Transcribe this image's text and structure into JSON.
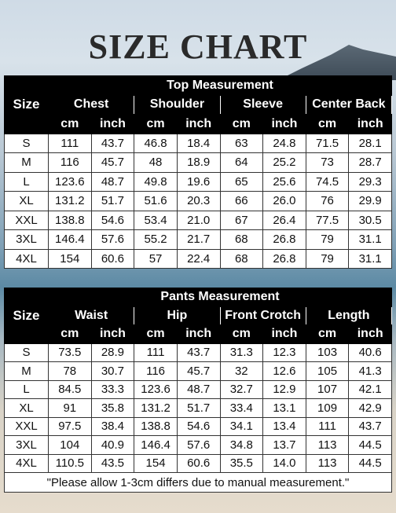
{
  "title": "SIZE CHART",
  "top": {
    "section_title": "Top Measurement",
    "size_label": "Size",
    "groups": [
      "Chest",
      "Shoulder",
      "Sleeve",
      "Center Back"
    ],
    "units": [
      "cm",
      "inch",
      "cm",
      "inch",
      "cm",
      "inch",
      "cm",
      "inch"
    ],
    "rows": [
      [
        "S",
        "111",
        "43.7",
        "46.8",
        "18.4",
        "63",
        "24.8",
        "71.5",
        "28.1"
      ],
      [
        "M",
        "116",
        "45.7",
        "48",
        "18.9",
        "64",
        "25.2",
        "73",
        "28.7"
      ],
      [
        "L",
        "123.6",
        "48.7",
        "49.8",
        "19.6",
        "65",
        "25.6",
        "74.5",
        "29.3"
      ],
      [
        "XL",
        "131.2",
        "51.7",
        "51.6",
        "20.3",
        "66",
        "26.0",
        "76",
        "29.9"
      ],
      [
        "XXL",
        "138.8",
        "54.6",
        "53.4",
        "21.0",
        "67",
        "26.4",
        "77.5",
        "30.5"
      ],
      [
        "3XL",
        "146.4",
        "57.6",
        "55.2",
        "21.7",
        "68",
        "26.8",
        "79",
        "31.1"
      ],
      [
        "4XL",
        "154",
        "60.6",
        "57",
        "22.4",
        "68",
        "26.8",
        "79",
        "31.1"
      ]
    ]
  },
  "pants": {
    "section_title": "Pants  Measurement",
    "size_label": "Size",
    "groups": [
      "Waist",
      "Hip",
      "Front Crotch",
      "Length"
    ],
    "units": [
      "cm",
      "inch",
      "cm",
      "inch",
      "cm",
      "inch",
      "cm",
      "inch"
    ],
    "rows": [
      [
        "S",
        "73.5",
        "28.9",
        "111",
        "43.7",
        "31.3",
        "12.3",
        "103",
        "40.6"
      ],
      [
        "M",
        "78",
        "30.7",
        "116",
        "45.7",
        "32",
        "12.6",
        "105",
        "41.3"
      ],
      [
        "L",
        "84.5",
        "33.3",
        "123.6",
        "48.7",
        "32.7",
        "12.9",
        "107",
        "42.1"
      ],
      [
        "XL",
        "91",
        "35.8",
        "131.2",
        "51.7",
        "33.4",
        "13.1",
        "109",
        "42.9"
      ],
      [
        "XXL",
        "97.5",
        "38.4",
        "138.8",
        "54.6",
        "34.1",
        "13.4",
        "111",
        "43.7"
      ],
      [
        "3XL",
        "104",
        "40.9",
        "146.4",
        "57.6",
        "34.8",
        "13.7",
        "113",
        "44.5"
      ],
      [
        "4XL",
        "110.5",
        "43.5",
        "154",
        "60.6",
        "35.5",
        "14.0",
        "113",
        "44.5"
      ]
    ],
    "note": "\"Please allow 1-3cm differs due to manual measurement.\""
  }
}
